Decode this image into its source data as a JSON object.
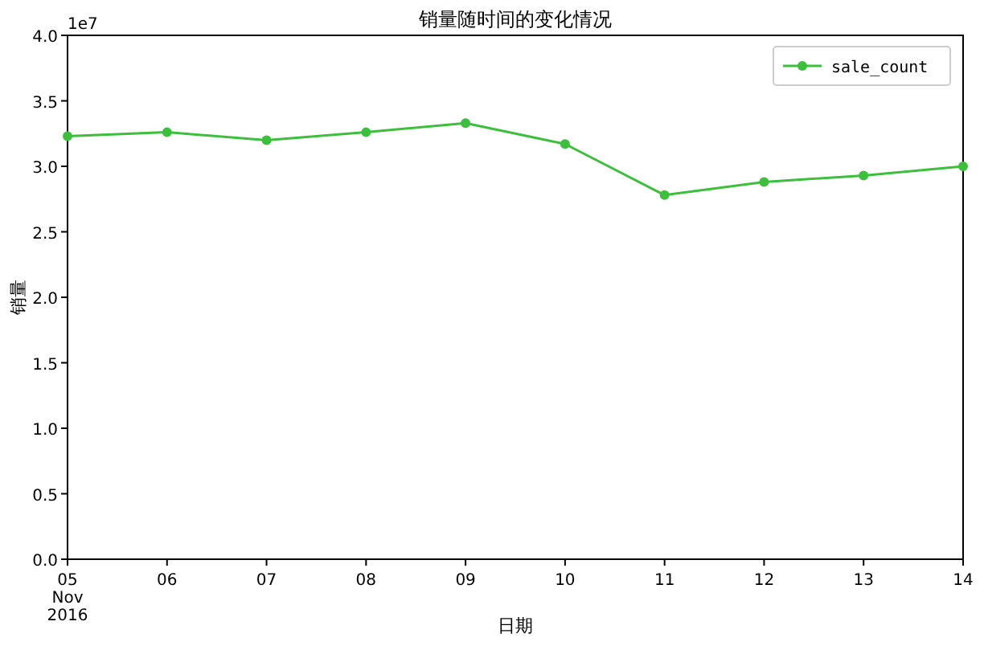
{
  "chart_data": {
    "type": "line",
    "title": "销量随时间的变化情况",
    "xlabel": "日期",
    "ylabel": "销量",
    "annotations": [
      "1e7"
    ],
    "x": [
      "2016-11-05",
      "2016-11-06",
      "2016-11-07",
      "2016-11-08",
      "2016-11-09",
      "2016-11-10",
      "2016-11-11",
      "2016-11-12",
      "2016-11-13",
      "2016-11-14"
    ],
    "series": [
      {
        "name": "sale_count",
        "color": "#3dbf3d",
        "values": [
          3.23,
          3.26,
          3.2,
          3.26,
          3.33,
          3.17,
          2.78,
          2.88,
          2.93,
          3.0
        ]
      }
    ],
    "xlim": [
      "2016-11-05",
      "2016-11-14"
    ],
    "xticks": [
      {
        "value": "2016-11-05",
        "label": "05\nNov\n2016"
      },
      {
        "value": "2016-11-06",
        "label": "06"
      },
      {
        "value": "2016-11-07",
        "label": "07"
      },
      {
        "value": "2016-11-08",
        "label": "08"
      },
      {
        "value": "2016-11-09",
        "label": "09"
      },
      {
        "value": "2016-11-10",
        "label": "10"
      },
      {
        "value": "2016-11-11",
        "label": "11"
      },
      {
        "value": "2016-11-12",
        "label": "12"
      },
      {
        "value": "2016-11-13",
        "label": "13"
      },
      {
        "value": "2016-11-14",
        "label": "14"
      }
    ],
    "ylim": [
      0,
      4
    ],
    "yticks": [
      {
        "value": 0,
        "label": "0.0"
      },
      {
        "value": 0.5,
        "label": "0.5"
      },
      {
        "value": 1,
        "label": "1.0"
      },
      {
        "value": 1.5,
        "label": "1.5"
      },
      {
        "value": 2,
        "label": "2.0"
      },
      {
        "value": 2.5,
        "label": "2.5"
      },
      {
        "value": 3,
        "label": "3.0"
      },
      {
        "value": 3.5,
        "label": "3.5"
      },
      {
        "value": 4,
        "label": "4.0"
      }
    ],
    "grid": false,
    "legend": "top right",
    "marker": "circle",
    "line_style": "solid"
  }
}
